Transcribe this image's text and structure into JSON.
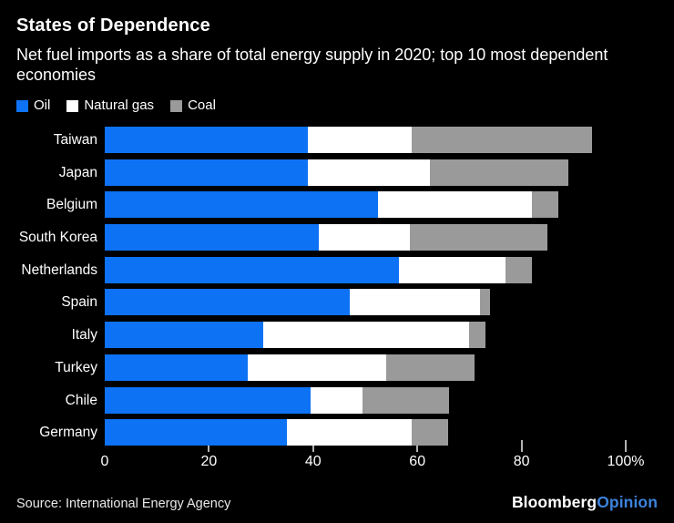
{
  "header": {
    "title": "States of Dependence",
    "subtitle": "Net fuel imports as a share of total energy supply in 2020; top 10 most dependent economies"
  },
  "chart_data": {
    "type": "bar",
    "orientation": "horizontal-stacked",
    "title": "States of Dependence",
    "subtitle": "Net fuel imports as a share of total energy supply in 2020; top 10 most dependent economies",
    "unit": "% of total energy supply",
    "categories": [
      "Taiwan",
      "Japan",
      "Belgium",
      "South Korea",
      "Netherlands",
      "Spain",
      "Italy",
      "Turkey",
      "Chile",
      "Germany"
    ],
    "series": [
      {
        "name": "Oil",
        "color": "#0d72f4",
        "values": [
          39,
          39,
          52.5,
          41,
          56.5,
          47,
          30.5,
          27.5,
          39.5,
          35
        ]
      },
      {
        "name": "Natural gas",
        "color": "#ffffff",
        "values": [
          20,
          23.5,
          29.5,
          17.5,
          20.5,
          25,
          39.5,
          26.5,
          10,
          24
        ]
      },
      {
        "name": "Coal",
        "color": "#9a9a9a",
        "values": [
          34.5,
          26.5,
          5,
          26.5,
          5,
          2,
          3,
          17,
          16.5,
          7
        ]
      }
    ],
    "totals": [
      93.5,
      89,
      87,
      85,
      82,
      74,
      73,
      71,
      66,
      66
    ],
    "xlim": [
      0,
      100
    ],
    "xticks": [
      0,
      20,
      40,
      60,
      80,
      100
    ],
    "xtick_labels": [
      "0",
      "20",
      "40",
      "60",
      "80",
      "100%"
    ],
    "grid": "off",
    "legend_position": "top-left",
    "background": "#000000"
  },
  "footer": {
    "source": "Source: International Energy Agency",
    "brand_bloomberg": "Bloomberg",
    "brand_opinion": "Opinion",
    "brand_opinion_color": "#3d82dd"
  }
}
